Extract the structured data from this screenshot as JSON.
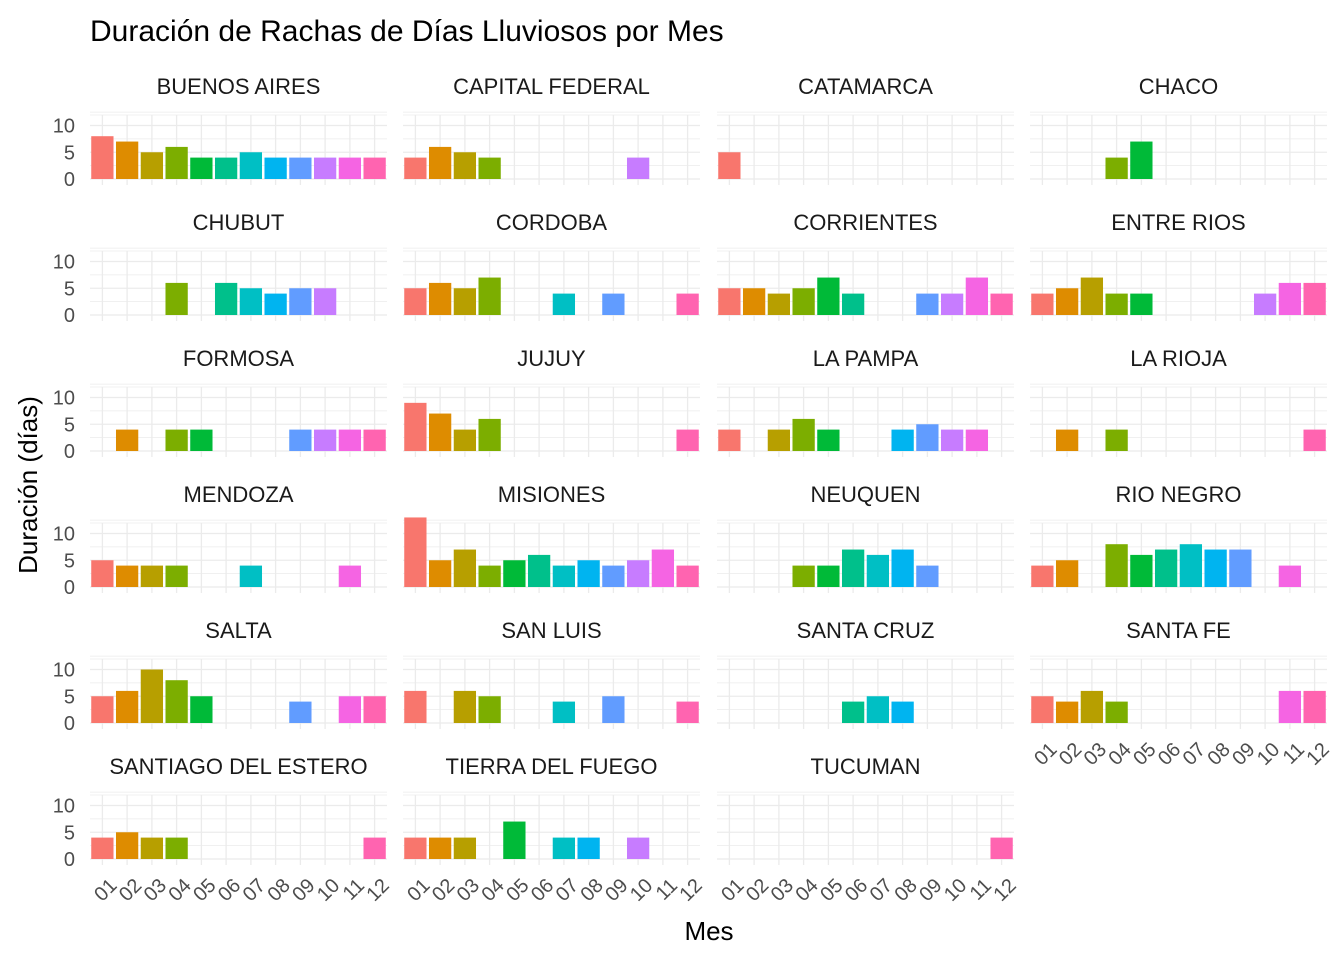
{
  "chart_data": {
    "type": "bar",
    "title": "Duración de Rachas de Días Lluviosos por Mes",
    "xlabel": "Mes",
    "ylabel": "Duración (días)",
    "ylim": [
      0,
      13
    ],
    "yticks": [
      0,
      5,
      10
    ],
    "grid": true,
    "legend": "none",
    "categories": [
      "01",
      "02",
      "03",
      "04",
      "05",
      "06",
      "07",
      "08",
      "09",
      "10",
      "11",
      "12"
    ],
    "month_colors": [
      "#F8766D",
      "#DE8C00",
      "#B79F00",
      "#7CAE00",
      "#00BA38",
      "#00C08B",
      "#00BFC4",
      "#00B4F0",
      "#619CFF",
      "#C77CFF",
      "#F564E3",
      "#FF64B0"
    ],
    "facets": [
      {
        "name": "BUENOS AIRES",
        "values": [
          8,
          7,
          5,
          6,
          4,
          4,
          5,
          4,
          4,
          4,
          4,
          4
        ]
      },
      {
        "name": "CAPITAL FEDERAL",
        "values": [
          4,
          6,
          5,
          4,
          null,
          null,
          null,
          null,
          null,
          4,
          null,
          null
        ]
      },
      {
        "name": "CATAMARCA",
        "values": [
          5,
          null,
          null,
          null,
          null,
          null,
          null,
          null,
          null,
          null,
          null,
          null
        ]
      },
      {
        "name": "CHACO",
        "values": [
          null,
          null,
          null,
          4,
          7,
          null,
          null,
          null,
          null,
          null,
          null,
          null
        ]
      },
      {
        "name": "CHUBUT",
        "values": [
          null,
          null,
          null,
          6,
          null,
          6,
          5,
          4,
          5,
          5,
          null,
          null
        ]
      },
      {
        "name": "CORDOBA",
        "values": [
          5,
          6,
          5,
          7,
          null,
          null,
          4,
          null,
          4,
          null,
          null,
          4
        ]
      },
      {
        "name": "CORRIENTES",
        "values": [
          5,
          5,
          4,
          5,
          7,
          4,
          null,
          null,
          4,
          4,
          7,
          4
        ]
      },
      {
        "name": "ENTRE RIOS",
        "values": [
          4,
          5,
          7,
          4,
          4,
          null,
          null,
          null,
          null,
          4,
          6,
          6
        ]
      },
      {
        "name": "FORMOSA",
        "values": [
          null,
          4,
          null,
          4,
          4,
          null,
          null,
          null,
          4,
          4,
          4,
          4
        ]
      },
      {
        "name": "JUJUY",
        "values": [
          9,
          7,
          4,
          6,
          null,
          null,
          null,
          null,
          null,
          null,
          null,
          4
        ]
      },
      {
        "name": "LA PAMPA",
        "values": [
          4,
          null,
          4,
          6,
          4,
          null,
          null,
          4,
          5,
          4,
          4,
          null
        ]
      },
      {
        "name": "LA RIOJA",
        "values": [
          null,
          4,
          null,
          4,
          null,
          null,
          null,
          null,
          null,
          null,
          null,
          4
        ]
      },
      {
        "name": "MENDOZA",
        "values": [
          5,
          4,
          4,
          4,
          null,
          null,
          4,
          null,
          null,
          null,
          4,
          null
        ]
      },
      {
        "name": "MISIONES",
        "values": [
          13,
          5,
          7,
          4,
          5,
          6,
          4,
          5,
          4,
          5,
          7,
          4
        ]
      },
      {
        "name": "NEUQUEN",
        "values": [
          null,
          null,
          null,
          4,
          4,
          7,
          6,
          7,
          4,
          null,
          null,
          null
        ]
      },
      {
        "name": "RIO NEGRO",
        "values": [
          4,
          5,
          null,
          8,
          6,
          7,
          8,
          7,
          7,
          null,
          4,
          null
        ]
      },
      {
        "name": "SALTA",
        "values": [
          5,
          6,
          10,
          8,
          5,
          null,
          null,
          null,
          4,
          null,
          5,
          5
        ]
      },
      {
        "name": "SAN LUIS",
        "values": [
          6,
          null,
          6,
          5,
          null,
          null,
          4,
          null,
          5,
          null,
          null,
          4
        ]
      },
      {
        "name": "SANTA CRUZ",
        "values": [
          null,
          null,
          null,
          null,
          null,
          4,
          5,
          4,
          null,
          null,
          null,
          null
        ]
      },
      {
        "name": "SANTA FE",
        "values": [
          5,
          4,
          6,
          4,
          null,
          null,
          null,
          null,
          null,
          null,
          6,
          6
        ]
      },
      {
        "name": "SANTIAGO DEL ESTERO",
        "values": [
          4,
          5,
          4,
          4,
          null,
          null,
          null,
          null,
          null,
          null,
          null,
          4
        ]
      },
      {
        "name": "TIERRA DEL FUEGO",
        "values": [
          4,
          4,
          4,
          null,
          7,
          null,
          4,
          4,
          null,
          4,
          null,
          null
        ]
      },
      {
        "name": "TUCUMAN",
        "values": [
          null,
          null,
          null,
          null,
          null,
          null,
          null,
          null,
          null,
          null,
          null,
          4
        ]
      }
    ]
  }
}
